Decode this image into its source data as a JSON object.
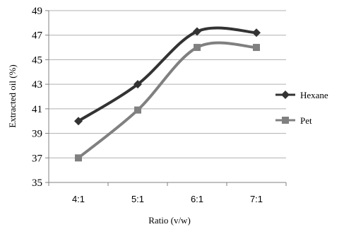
{
  "chart_data": {
    "type": "line",
    "title": "",
    "xlabel": "Ratio (v/w)",
    "ylabel": "Extracted oil (%)",
    "categories": [
      "4:1",
      "5:1",
      "6:1",
      "7:1"
    ],
    "ylim": [
      35,
      49
    ],
    "yticks": [
      35,
      37,
      39,
      41,
      43,
      45,
      47,
      49
    ],
    "grid": true,
    "legend_position": "right",
    "smooth": true,
    "series": [
      {
        "name": "Hexane",
        "values": [
          40.0,
          43.0,
          47.3,
          47.2
        ],
        "color": "#333333",
        "marker": "diamond"
      },
      {
        "name": "Pet",
        "values": [
          37.0,
          40.9,
          46.0,
          46.0
        ],
        "color": "#808080",
        "marker": "square"
      }
    ]
  }
}
